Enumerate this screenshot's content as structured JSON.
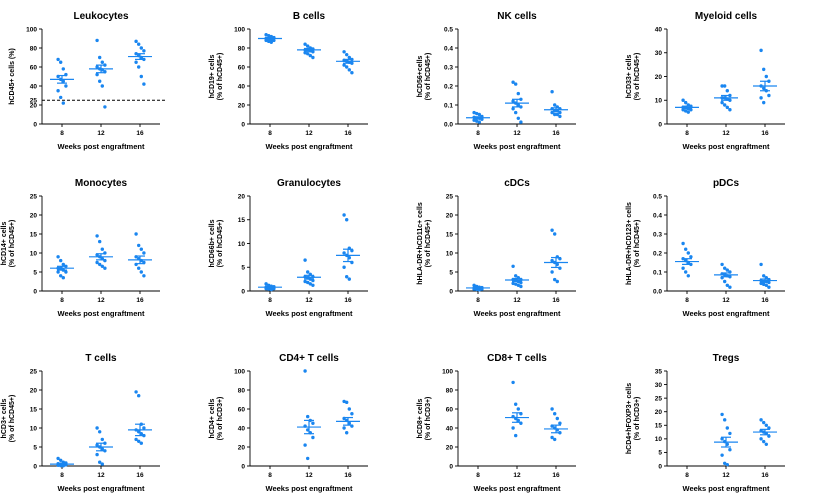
{
  "chart_data": [
    {
      "type": "scatter",
      "title": "Leukocytes",
      "ylabel": [
        "hCD45+ cells (%)"
      ],
      "xlabel": "Weeks post engraftment",
      "categories": [
        "8",
        "12",
        "16"
      ],
      "ylim": [
        0,
        100
      ],
      "yticks": [
        0,
        20,
        40,
        60,
        80,
        100
      ],
      "extra_ytick_labels": [
        "25"
      ],
      "reference_line": 25,
      "groups": [
        {
          "x": "8",
          "values": [
            68,
            65,
            58,
            52,
            50,
            47,
            45,
            40,
            35,
            28,
            22
          ],
          "mean": 47,
          "sem": 4
        },
        {
          "x": "12",
          "values": [
            88,
            70,
            65,
            62,
            60,
            58,
            57,
            55,
            52,
            45,
            40,
            18
          ],
          "mean": 58,
          "sem": 4
        },
        {
          "x": "16",
          "values": [
            87,
            84,
            80,
            77,
            74,
            72,
            70,
            68,
            65,
            60,
            50,
            42
          ],
          "mean": 71,
          "sem": 3
        }
      ]
    },
    {
      "type": "scatter",
      "title": "B cells",
      "ylabel": [
        "hCD19+ cells",
        "(% of hCD45+)"
      ],
      "xlabel": "Weeks post engraftment",
      "categories": [
        "8",
        "12",
        "16"
      ],
      "ylim": [
        0,
        100
      ],
      "yticks": [
        0,
        20,
        40,
        60,
        80,
        100
      ],
      "groups": [
        {
          "x": "8",
          "values": [
            94,
            93,
            92,
            91,
            90,
            90,
            89,
            88,
            88,
            87,
            86
          ],
          "mean": 90,
          "sem": 1
        },
        {
          "x": "12",
          "values": [
            84,
            82,
            80,
            79,
            78,
            78,
            77,
            76,
            75,
            74,
            72,
            70
          ],
          "mean": 78,
          "sem": 1.5
        },
        {
          "x": "16",
          "values": [
            76,
            73,
            70,
            68,
            67,
            66,
            65,
            64,
            62,
            60,
            57,
            54
          ],
          "mean": 66,
          "sem": 2
        }
      ]
    },
    {
      "type": "scatter",
      "title": "NK  cells",
      "ylabel": [
        "hCD56+cells",
        "(% of hCD45+)"
      ],
      "xlabel": "Weeks post engraftment",
      "categories": [
        "8",
        "12",
        "16"
      ],
      "ylim": [
        0,
        0.5
      ],
      "yticks": [
        0.0,
        0.1,
        0.2,
        0.3,
        0.4,
        0.5
      ],
      "ytick_labels": [
        "0.0",
        "0.1",
        "0.2",
        "0.3",
        "0.4",
        "0.5"
      ],
      "groups": [
        {
          "x": "8",
          "values": [
            0.06,
            0.055,
            0.05,
            0.04,
            0.035,
            0.03,
            0.03,
            0.025,
            0.02,
            0.015,
            0.01
          ],
          "mean": 0.033,
          "sem": 0.005
        },
        {
          "x": "12",
          "values": [
            0.22,
            0.21,
            0.16,
            0.13,
            0.12,
            0.11,
            0.1,
            0.09,
            0.08,
            0.06,
            0.03,
            0.01
          ],
          "mean": 0.11,
          "sem": 0.02
        },
        {
          "x": "16",
          "values": [
            0.17,
            0.1,
            0.09,
            0.08,
            0.08,
            0.07,
            0.07,
            0.06,
            0.06,
            0.05,
            0.05,
            0.04
          ],
          "mean": 0.075,
          "sem": 0.01
        }
      ]
    },
    {
      "type": "scatter",
      "title": "Myeloid cells",
      "ylabel": [
        "hCD33+ cells",
        "(% of hCD45+)"
      ],
      "xlabel": "Weeks post engraftment",
      "categories": [
        "8",
        "12",
        "16"
      ],
      "ylim": [
        0,
        40
      ],
      "yticks": [
        0,
        10,
        20,
        30,
        40
      ],
      "groups": [
        {
          "x": "8",
          "values": [
            10,
            9,
            8,
            7.5,
            7,
            7,
            6.5,
            6,
            6,
            5.5,
            5
          ],
          "mean": 7,
          "sem": 0.5
        },
        {
          "x": "12",
          "values": [
            16,
            16,
            14,
            12,
            11,
            11,
            10.5,
            10,
            9,
            8,
            7,
            6
          ],
          "mean": 11,
          "sem": 1
        },
        {
          "x": "16",
          "values": [
            31,
            23,
            20,
            18,
            16,
            15,
            14,
            12,
            11,
            9
          ],
          "mean": 16,
          "sem": 2
        }
      ]
    },
    {
      "type": "scatter",
      "title": "Monocytes",
      "ylabel": [
        "hCD14+ cells",
        "(% of hCD45+)"
      ],
      "xlabel": "Weeks post engraftment",
      "categories": [
        "8",
        "12",
        "16"
      ],
      "ylim": [
        0,
        25
      ],
      "yticks": [
        0,
        5,
        10,
        15,
        20,
        25
      ],
      "groups": [
        {
          "x": "8",
          "values": [
            9,
            8,
            7,
            6.5,
            6,
            6,
            5.5,
            5,
            5,
            4,
            3.5
          ],
          "mean": 6,
          "sem": 0.5
        },
        {
          "x": "12",
          "values": [
            14.5,
            13,
            11,
            10,
            9.5,
            9,
            8.5,
            8,
            7.5,
            7,
            6.5,
            6
          ],
          "mean": 9,
          "sem": 0.8
        },
        {
          "x": "16",
          "values": [
            15,
            12,
            11,
            10,
            9,
            8.5,
            8,
            7.5,
            7,
            6,
            5,
            4
          ],
          "mean": 8.2,
          "sem": 1
        }
      ]
    },
    {
      "type": "scatter",
      "title": "Granulocytes",
      "ylabel": [
        "hCD66b+ cells",
        "(% of hCD45+)"
      ],
      "xlabel": "Weeks post engraftment",
      "categories": [
        "8",
        "12",
        "16"
      ],
      "ylim": [
        0,
        20
      ],
      "yticks": [
        0,
        5,
        10,
        15,
        20
      ],
      "groups": [
        {
          "x": "8",
          "values": [
            1.5,
            1.2,
            1,
            0.9,
            0.8,
            0.7,
            0.6,
            0.5,
            0.5,
            0.4,
            0.3
          ],
          "mean": 0.8,
          "sem": 0.1
        },
        {
          "x": "12",
          "values": [
            6.5,
            4,
            3.5,
            3,
            3,
            2.8,
            2.5,
            2.2,
            2,
            1.8,
            1.5,
            1.2
          ],
          "mean": 2.9,
          "sem": 0.4
        },
        {
          "x": "16",
          "values": [
            16,
            15,
            9,
            8.5,
            8,
            7.5,
            7,
            6,
            5,
            3,
            2.5
          ],
          "mean": 7.5,
          "sem": 1.3
        }
      ]
    },
    {
      "type": "scatter",
      "title": "cDCs",
      "ylabel": [
        "hHLA-DR+hCD11c+ cells",
        "(% of hCD45+)"
      ],
      "xlabel": "Weeks post engraftment",
      "categories": [
        "8",
        "12",
        "16"
      ],
      "ylim": [
        0,
        25
      ],
      "yticks": [
        0,
        5,
        10,
        15,
        20,
        25
      ],
      "groups": [
        {
          "x": "8",
          "values": [
            1.5,
            1.2,
            1,
            0.9,
            0.8,
            0.7,
            0.6,
            0.5,
            0.5,
            0.4,
            0.3
          ],
          "mean": 0.8,
          "sem": 0.1
        },
        {
          "x": "12",
          "values": [
            6.5,
            4,
            3.5,
            3,
            3,
            2.8,
            2.5,
            2.2,
            2,
            1.8,
            1.5,
            1.2
          ],
          "mean": 2.9,
          "sem": 0.4
        },
        {
          "x": "16",
          "values": [
            16,
            15,
            9,
            8.5,
            8,
            7.5,
            7,
            6,
            5,
            3,
            2.5
          ],
          "mean": 7.5,
          "sem": 1.3
        }
      ]
    },
    {
      "type": "scatter",
      "title": "pDCs",
      "ylabel": [
        "hHLA-DR+hCD123+ cells",
        "(% of hCD45+)"
      ],
      "xlabel": "Weeks post engraftment",
      "categories": [
        "8",
        "12",
        "16"
      ],
      "ylim": [
        0,
        0.5
      ],
      "yticks": [
        0.0,
        0.1,
        0.2,
        0.3,
        0.4,
        0.5
      ],
      "ytick_labels": [
        "0.0",
        "0.1",
        "0.2",
        "0.3",
        "0.4",
        "0.5"
      ],
      "groups": [
        {
          "x": "8",
          "values": [
            0.25,
            0.22,
            0.2,
            0.18,
            0.17,
            0.16,
            0.15,
            0.14,
            0.12,
            0.1,
            0.08
          ],
          "mean": 0.155,
          "sem": 0.015
        },
        {
          "x": "12",
          "values": [
            0.14,
            0.12,
            0.11,
            0.1,
            0.09,
            0.085,
            0.08,
            0.075,
            0.07,
            0.05,
            0.03,
            0.02
          ],
          "mean": 0.085,
          "sem": 0.01
        },
        {
          "x": "16",
          "values": [
            0.14,
            0.08,
            0.07,
            0.06,
            0.055,
            0.05,
            0.05,
            0.045,
            0.04,
            0.035,
            0.03,
            0.02
          ],
          "mean": 0.055,
          "sem": 0.008
        }
      ]
    },
    {
      "type": "scatter",
      "title": "T cells",
      "ylabel": [
        "hCD3+ cells",
        "(% of hCD45+)"
      ],
      "xlabel": "Weeks post engraftment",
      "categories": [
        "8",
        "12",
        "16"
      ],
      "ylim": [
        0,
        25
      ],
      "yticks": [
        0,
        5,
        10,
        15,
        20,
        25
      ],
      "groups": [
        {
          "x": "8",
          "values": [
            2,
            1.5,
            1,
            0.8,
            0.6,
            0.5,
            0.4,
            0.3,
            0.2,
            0.1,
            0.05
          ],
          "mean": 0.5,
          "sem": 0.15
        },
        {
          "x": "12",
          "values": [
            10,
            9,
            7,
            6,
            5.5,
            5,
            4.5,
            4,
            3,
            1,
            0.5
          ],
          "mean": 5,
          "sem": 1
        },
        {
          "x": "16",
          "values": [
            19.5,
            18.5,
            11,
            10,
            9.5,
            9,
            8.5,
            8,
            7,
            6.5,
            6
          ],
          "mean": 9.5,
          "sem": 1.5
        }
      ]
    },
    {
      "type": "scatter",
      "title": "CD4+ T cells",
      "ylabel": [
        "hCD4+ cells",
        "(% of hCD3+)"
      ],
      "xlabel": "Weeks post engraftment",
      "categories": [
        "8",
        "12",
        "16"
      ],
      "ylim": [
        0,
        100
      ],
      "yticks": [
        0,
        20,
        40,
        60,
        80,
        100
      ],
      "groups": [
        {
          "x": "8",
          "values": [],
          "mean": null,
          "sem": null
        },
        {
          "x": "12",
          "values": [
            100,
            52,
            48,
            45,
            42,
            38,
            35,
            30,
            22,
            8
          ],
          "mean": 41,
          "sem": 7
        },
        {
          "x": "16",
          "values": [
            68,
            67,
            60,
            55,
            50,
            48,
            45,
            42,
            40,
            35
          ],
          "mean": 47,
          "sem": 4
        }
      ]
    },
    {
      "type": "scatter",
      "title": "CD8+ T cells",
      "ylabel": [
        "hCD8+ cells",
        "(% of hCD3+)"
      ],
      "xlabel": "Weeks post engraftment",
      "categories": [
        "8",
        "12",
        "16"
      ],
      "ylim": [
        0,
        100
      ],
      "yticks": [
        0,
        20,
        40,
        60,
        80,
        100
      ],
      "groups": [
        {
          "x": "8",
          "values": [],
          "mean": null,
          "sem": null
        },
        {
          "x": "12",
          "values": [
            88,
            65,
            60,
            55,
            52,
            50,
            48,
            45,
            40,
            32
          ],
          "mean": 51,
          "sem": 5
        },
        {
          "x": "16",
          "values": [
            60,
            55,
            50,
            45,
            42,
            40,
            38,
            35,
            30,
            28
          ],
          "mean": 39,
          "sem": 4
        }
      ]
    },
    {
      "type": "scatter",
      "title": "Tregs",
      "ylabel": [
        "hCD4+hFOXP3+ cells",
        "(% of hCD3+)"
      ],
      "xlabel": "Weeks post engraftment",
      "categories": [
        "8",
        "12",
        "16"
      ],
      "ylim": [
        0,
        35
      ],
      "yticks": [
        0,
        5,
        10,
        15,
        20,
        25,
        30,
        35
      ],
      "groups": [
        {
          "x": "8",
          "values": [],
          "mean": null,
          "sem": null
        },
        {
          "x": "12",
          "values": [
            19,
            17,
            14,
            12,
            10,
            9,
            8,
            6,
            4,
            1,
            0.5
          ],
          "mean": 8.8,
          "sem": 1.8
        },
        {
          "x": "16",
          "values": [
            17,
            16,
            15,
            14,
            13,
            12.5,
            12,
            11,
            10,
            9,
            8
          ],
          "mean": 12.5,
          "sem": 1
        }
      ]
    }
  ]
}
